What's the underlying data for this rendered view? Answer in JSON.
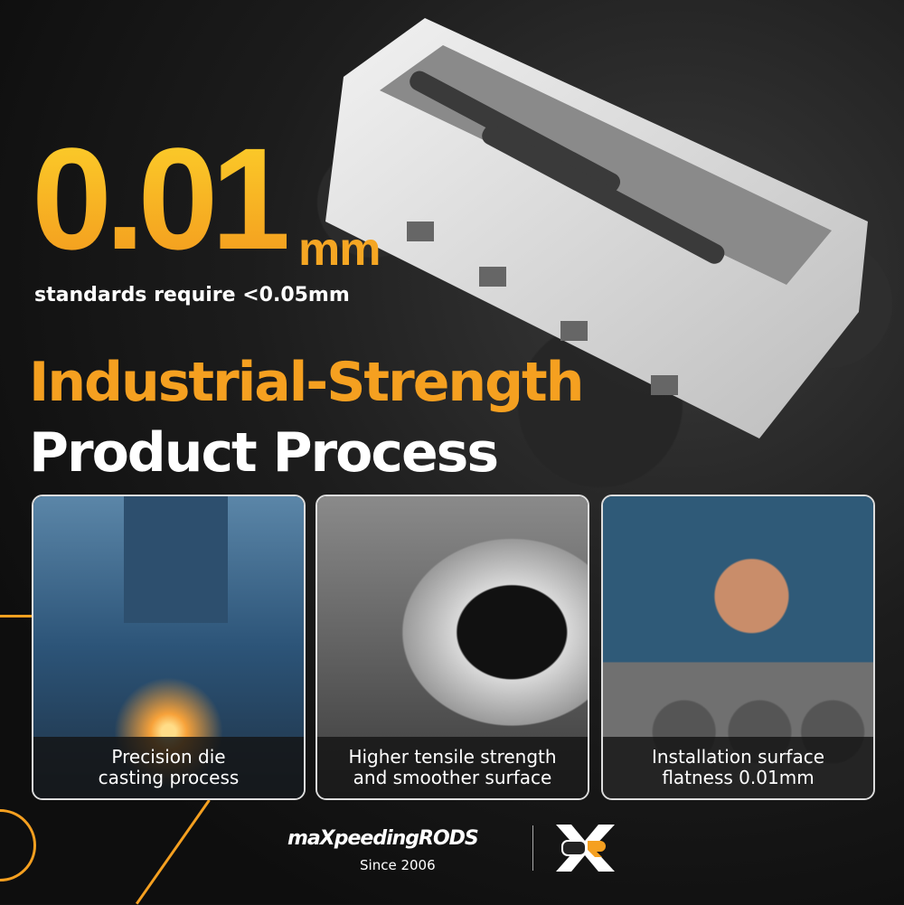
{
  "headline": {
    "value": "0.01",
    "unit": "mm",
    "subtitle": "standards require <0.05mm"
  },
  "title": {
    "line1": "Industrial-Strength",
    "line2": "Product Process"
  },
  "cards": [
    {
      "caption1": "Precision die",
      "caption2": "casting process",
      "icon": "die-casting-photo"
    },
    {
      "caption1": "Higher tensile strength",
      "caption2": "and smoother surface",
      "icon": "machined-bore-photo"
    },
    {
      "caption1": "Installation surface",
      "caption2": "flatness 0.01mm",
      "icon": "thumbs-up-engine-block-photo"
    }
  ],
  "brand": {
    "name": "maXpeedingRODS",
    "since": "Since 2006",
    "accent": "#f5a020"
  }
}
